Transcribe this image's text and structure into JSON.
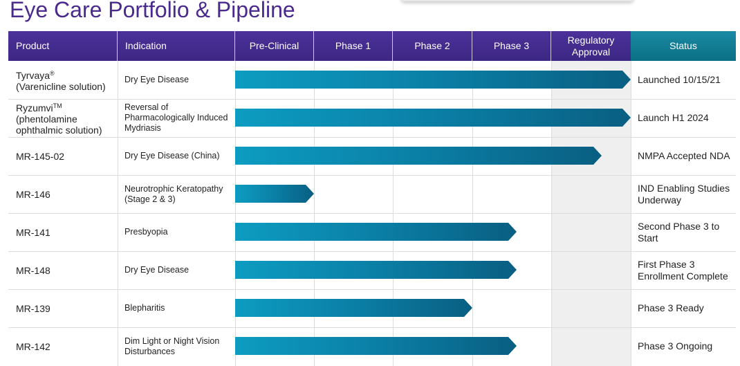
{
  "page": {
    "title": "Eye Care Portfolio & Pipeline"
  },
  "table": {
    "headers": {
      "product": "Product",
      "indication": "Indication",
      "preclinical": "Pre-Clinical",
      "phase1": "Phase 1",
      "phase2": "Phase 2",
      "phase3": "Phase 3",
      "regulatory": "Regulatory\nApproval",
      "status": "Status"
    },
    "rows": [
      {
        "product": "Tyrvaya",
        "product_mark": "®",
        "product_detail": "(Varenicline solution)",
        "indication": "Dry Eye Disease",
        "status": "Launched 10/15/21",
        "progress_stage": "Regulatory Approval (complete)"
      },
      {
        "product": "Ryzumvi",
        "product_mark": "TM",
        "product_detail": "(phentolamine\nophthalmic solution)",
        "indication": "Reversal of Pharmacologically Induced Mydriasis",
        "status": "Launch H1 2024",
        "progress_stage": "Regulatory Approval (complete)"
      },
      {
        "product": "MR-145-02",
        "product_mark": "",
        "product_detail": "",
        "indication": "Dry Eye Disease (China)",
        "status": "NMPA Accepted NDA",
        "progress_stage": "Regulatory Approval (in progress)"
      },
      {
        "product": "MR-146",
        "product_mark": "",
        "product_detail": "",
        "indication": "Neurotrophic Keratopathy (Stage 2 & 3)",
        "status": "IND Enabling Studies Underway",
        "progress_stage": "Pre-Clinical"
      },
      {
        "product": "MR-141",
        "product_mark": "",
        "product_detail": "",
        "indication": "Presbyopia",
        "status": "Second Phase 3 to Start",
        "progress_stage": "Phase 3"
      },
      {
        "product": "MR-148",
        "product_mark": "",
        "product_detail": "",
        "indication": "Dry Eye Disease",
        "status": "First Phase 3 Enrollment Complete",
        "progress_stage": "Phase 3"
      },
      {
        "product": "MR-139",
        "product_mark": "",
        "product_detail": "",
        "indication": "Blepharitis",
        "status": "Phase 3 Ready",
        "progress_stage": "Phase 2"
      },
      {
        "product": "MR-142",
        "product_mark": "",
        "product_detail": "",
        "indication": "Dim Light or Night Vision Disturbances",
        "status": "Phase 3 Ongoing",
        "progress_stage": "Phase 3"
      }
    ]
  },
  "colors": {
    "title": "#4a2a8e",
    "header_purple": "#4b3199",
    "header_teal": "#0f7e95",
    "bar_start": "#0d9cc1",
    "bar_end": "#095f82",
    "regulatory_shade": "#efefef"
  }
}
